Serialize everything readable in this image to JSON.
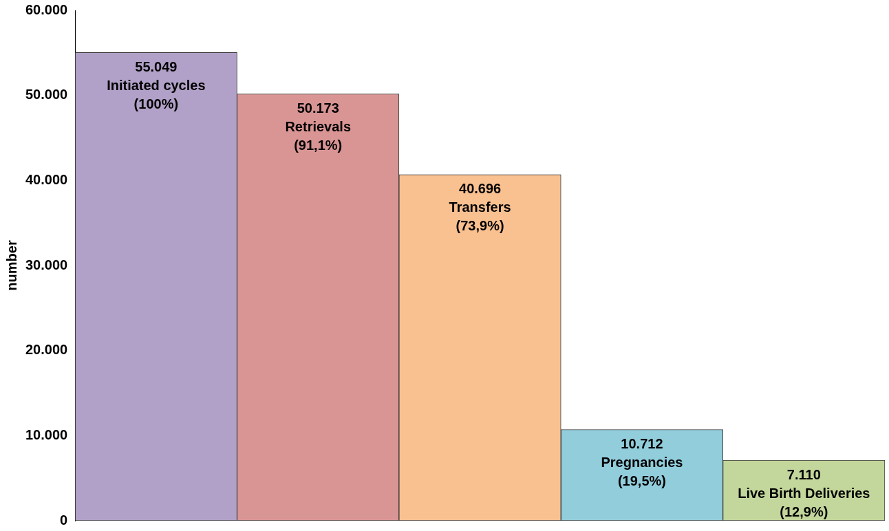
{
  "chart_data": {
    "type": "bar",
    "ylabel": "number",
    "categories": [
      null,
      null,
      null,
      null,
      null
    ],
    "values": [
      55049,
      50173,
      40696,
      10712,
      7110
    ],
    "colors": [
      "#b1a0c7",
      "#d99594",
      "#f9c090",
      "#92cddc",
      "#c3d69b"
    ],
    "value_labels": [
      "55.049\nInitiated cycles\n(100%)",
      "50.173\nRetrievals\n(91,1%)",
      "40.696\nTransfers\n(73,9%)",
      "10.712\nPregnancies\n(19,5%)",
      "7.110\nLive Birth Deliveries\n(12,9%)"
    ],
    "ylim": [
      0,
      60000
    ],
    "yticks": [
      {
        "value": 0,
        "label": "0"
      },
      {
        "value": 10000,
        "label": "10.000"
      },
      {
        "value": 20000,
        "label": "20.000"
      },
      {
        "value": 30000,
        "label": "30.000"
      },
      {
        "value": 40000,
        "label": "40.000"
      },
      {
        "value": 50000,
        "label": "50.000"
      },
      {
        "value": 60000,
        "label": "60.000"
      }
    ],
    "grid": false,
    "legend": false
  }
}
